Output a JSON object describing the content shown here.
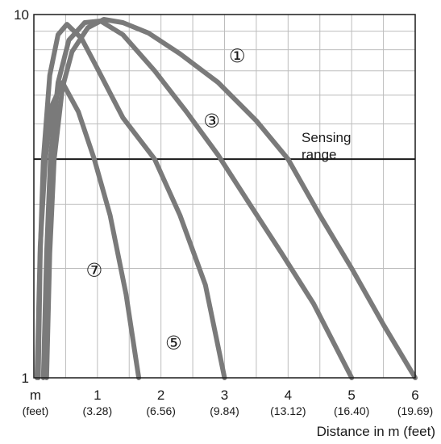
{
  "chart_data": {
    "type": "line",
    "x_scale": "linear",
    "y_scale": "log",
    "xlim": [
      0,
      6
    ],
    "ylim": [
      1,
      10
    ],
    "xlabel": "Distance in m (feet)",
    "x_unit_label": "m",
    "x_unit_sublabel": "(feet)",
    "x_ticks": [
      {
        "value": 1,
        "label": "1",
        "sublabel": "(3.28)"
      },
      {
        "value": 2,
        "label": "2",
        "sublabel": "(6.56)"
      },
      {
        "value": 3,
        "label": "3",
        "sublabel": "(9.84)"
      },
      {
        "value": 4,
        "label": "4",
        "sublabel": "(13.12)"
      },
      {
        "value": 5,
        "label": "5",
        "sublabel": "(16.40)"
      },
      {
        "value": 6,
        "label": "6",
        "sublabel": "(19.69)"
      }
    ],
    "y_ticks": [
      {
        "value": 1,
        "label": "1"
      },
      {
        "value": 10,
        "label": "10"
      }
    ],
    "grid": true,
    "threshold": {
      "value": 4,
      "label_line1": "Sensing",
      "label_line2": "range"
    },
    "series": [
      {
        "name": "①",
        "color": "#7a7a7a",
        "points": [
          [
            0.2,
            1.0
          ],
          [
            0.25,
            2.2
          ],
          [
            0.32,
            4.0
          ],
          [
            0.45,
            6.3
          ],
          [
            0.6,
            7.9
          ],
          [
            0.85,
            9.2
          ],
          [
            1.1,
            9.7
          ],
          [
            1.4,
            9.5
          ],
          [
            1.8,
            8.9
          ],
          [
            2.3,
            7.8
          ],
          [
            2.9,
            6.5
          ],
          [
            3.5,
            5.1
          ],
          [
            4.0,
            4.0
          ],
          [
            4.5,
            2.8
          ],
          [
            5.0,
            2.0
          ],
          [
            5.5,
            1.4
          ],
          [
            6.0,
            1.0
          ]
        ]
      },
      {
        "name": "③",
        "color": "#7a7a7a",
        "points": [
          [
            0.15,
            1.0
          ],
          [
            0.2,
            2.2
          ],
          [
            0.26,
            4.0
          ],
          [
            0.38,
            6.5
          ],
          [
            0.55,
            8.5
          ],
          [
            0.8,
            9.5
          ],
          [
            1.05,
            9.6
          ],
          [
            1.4,
            8.8
          ],
          [
            1.9,
            7.0
          ],
          [
            2.4,
            5.4
          ],
          [
            2.9,
            4.1
          ],
          [
            3.4,
            3.0
          ],
          [
            3.9,
            2.2
          ],
          [
            4.4,
            1.6
          ],
          [
            5.0,
            1.0
          ]
        ]
      },
      {
        "name": "⑤",
        "color": "#7a7a7a",
        "points": [
          [
            0.07,
            1.0
          ],
          [
            0.1,
            2.2
          ],
          [
            0.15,
            4.0
          ],
          [
            0.25,
            6.8
          ],
          [
            0.38,
            8.8
          ],
          [
            0.52,
            9.4
          ],
          [
            0.75,
            8.6
          ],
          [
            1.0,
            7.1
          ],
          [
            1.4,
            5.2
          ],
          [
            1.9,
            4.0
          ],
          [
            2.3,
            2.8
          ],
          [
            2.7,
            1.8
          ],
          [
            3.0,
            1.0
          ]
        ]
      },
      {
        "name": "⑦",
        "color": "#7a7a7a",
        "points": [
          [
            0.05,
            1.0
          ],
          [
            0.1,
            2.3
          ],
          [
            0.18,
            4.0
          ],
          [
            0.28,
            5.6
          ],
          [
            0.45,
            6.5
          ],
          [
            0.7,
            5.4
          ],
          [
            0.95,
            4.0
          ],
          [
            1.2,
            2.8
          ],
          [
            1.45,
            1.7
          ],
          [
            1.65,
            1.0
          ]
        ]
      }
    ],
    "labels": [
      {
        "series": "①",
        "x": 3.2,
        "y": 7.4
      },
      {
        "series": "③",
        "x": 2.8,
        "y": 4.9
      },
      {
        "series": "⑦",
        "x": 0.95,
        "y": 1.9
      },
      {
        "series": "⑤",
        "x": 2.2,
        "y": 1.2
      }
    ]
  },
  "style": {
    "axis_color": "#1a1a1a",
    "grid_color": "#bdbdbd",
    "threshold_color": "#1a1a1a"
  }
}
